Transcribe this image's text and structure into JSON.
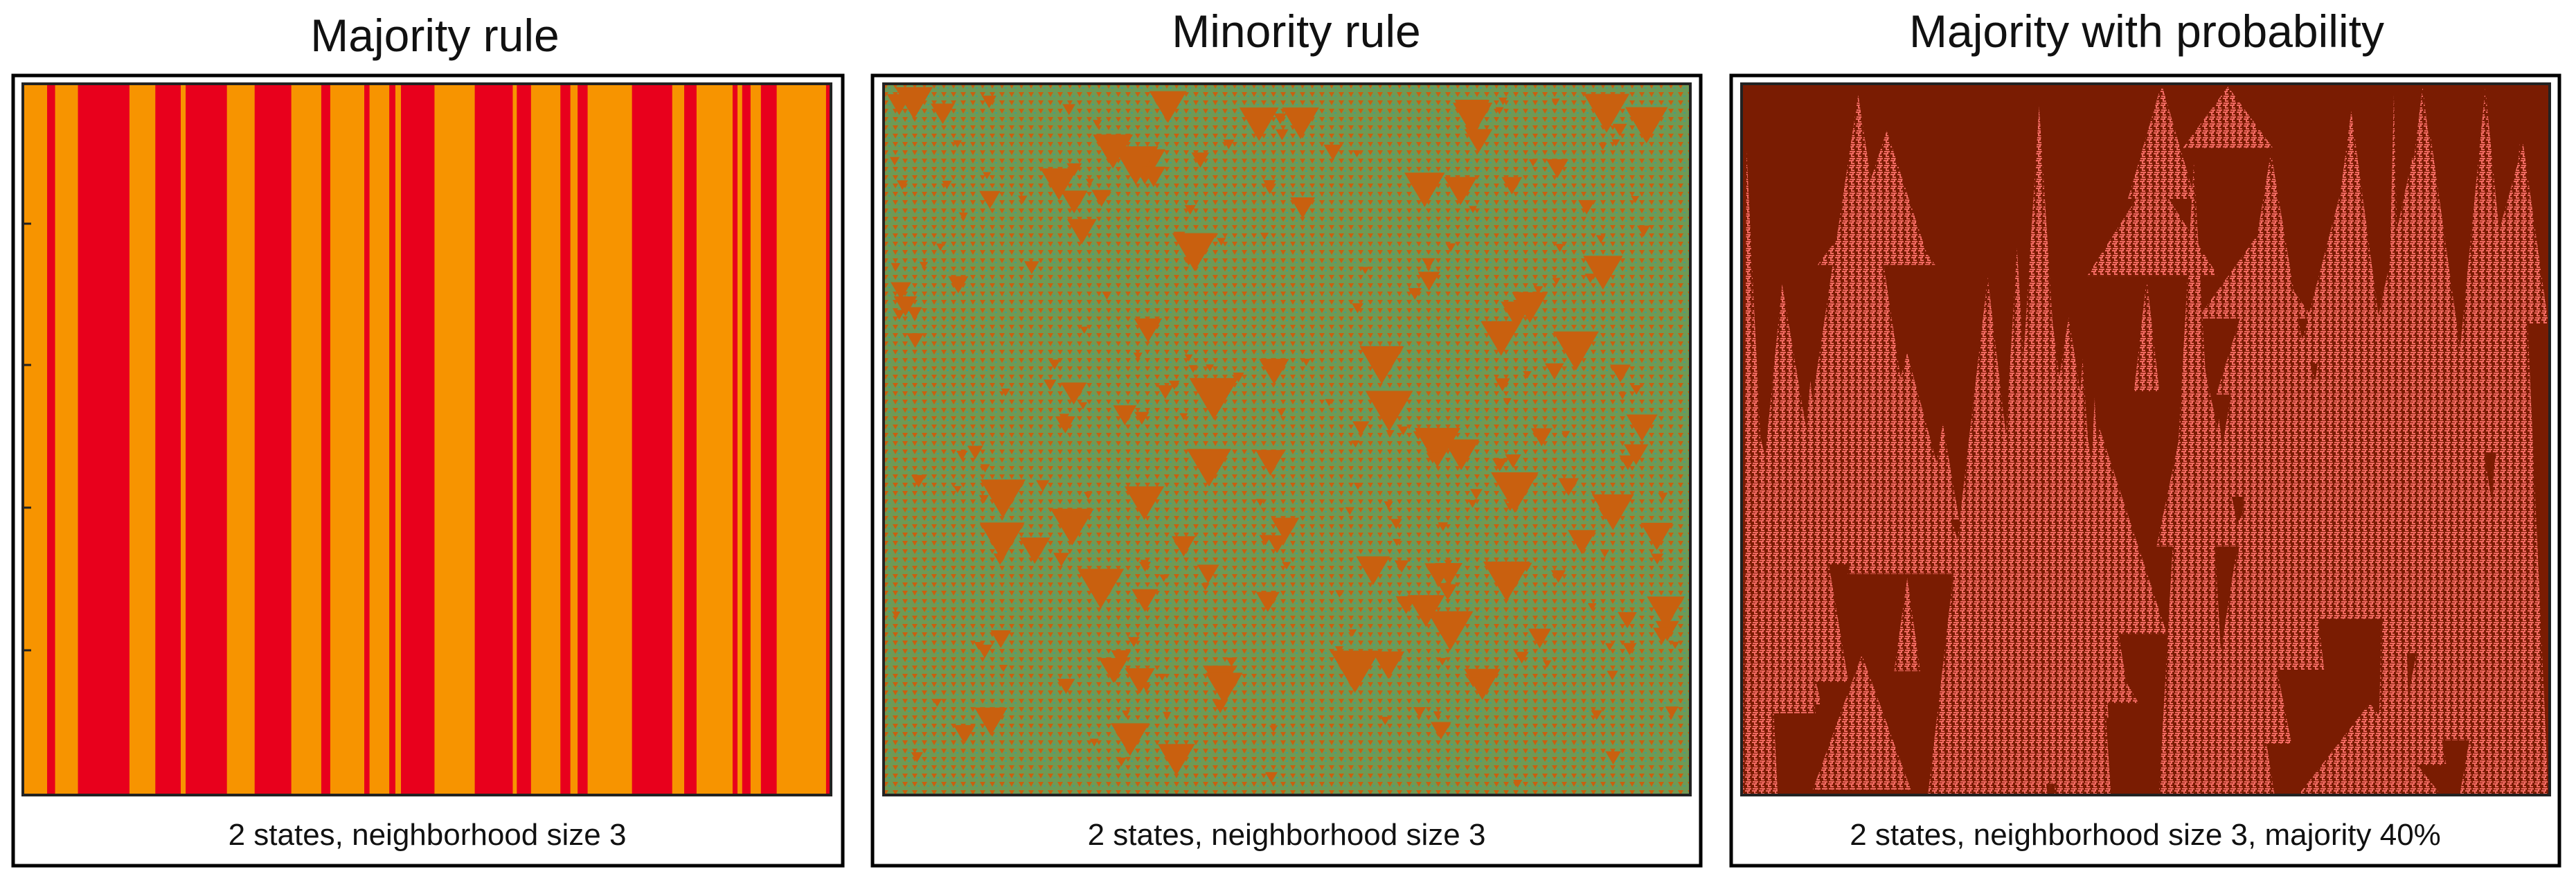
{
  "panels": [
    {
      "title": "Majority rule",
      "caption": "2 states, neighborhood size 3"
    },
    {
      "title": "Minority rule",
      "caption": "2 states, neighborhood size 3"
    },
    {
      "title": "Majority with probability",
      "caption": "2 states, neighborhood size 3, majority 40%"
    }
  ]
}
